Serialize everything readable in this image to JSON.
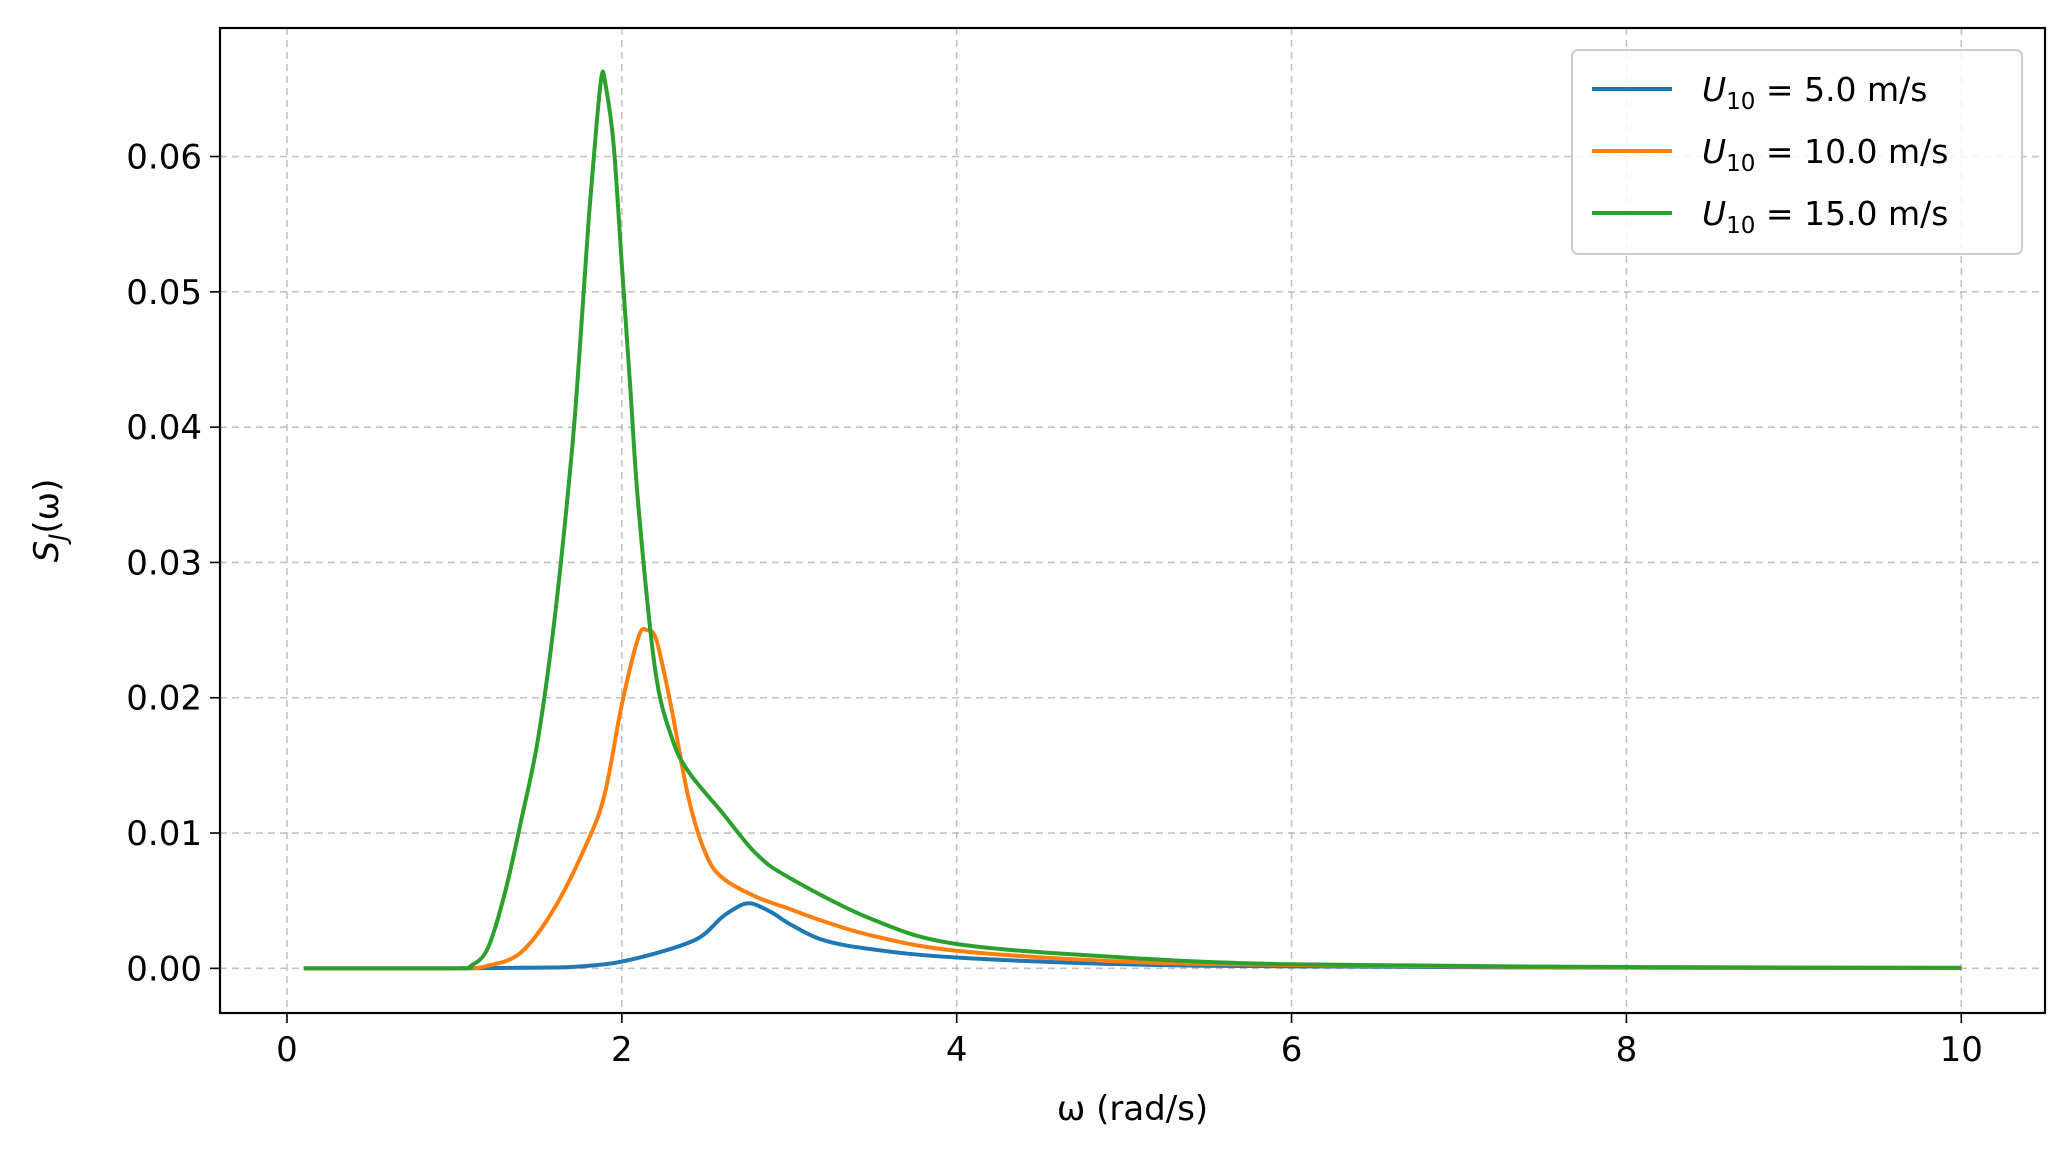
{
  "chart_data": {
    "type": "line",
    "xlabel": "ω (rad/s)",
    "ylabel": "S_J(ω)",
    "xlim": [
      -0.4,
      10.5
    ],
    "ylim": [
      -0.0033,
      0.0695
    ],
    "xticks": [
      0,
      2,
      4,
      6,
      8,
      10
    ],
    "xtick_labels": [
      "0",
      "2",
      "4",
      "6",
      "8",
      "10"
    ],
    "yticks": [
      0.0,
      0.01,
      0.02,
      0.03,
      0.04,
      0.05,
      0.06
    ],
    "ytick_labels": [
      "0.00",
      "0.01",
      "0.02",
      "0.03",
      "0.04",
      "0.05",
      "0.06"
    ],
    "grid": true,
    "legend_position": "top-right",
    "series": [
      {
        "name": "U10 = 5.0 m/s",
        "legend_main": "U",
        "legend_sub": "10",
        "legend_value": " = 5.0 m/s",
        "color": "#1f77b4",
        "x": [
          0.1,
          1.0,
          1.5,
          1.7,
          1.9,
          2.0,
          2.2,
          2.4,
          2.5,
          2.6,
          2.7,
          2.75,
          2.8,
          2.9,
          3.0,
          3.2,
          3.5,
          4.0,
          5.0,
          6.0,
          8.0,
          10.0
        ],
        "y": [
          0.0,
          0.0,
          5e-05,
          0.0001,
          0.0003,
          0.0005,
          0.0011,
          0.0019,
          0.0026,
          0.0038,
          0.0046,
          0.0048,
          0.0047,
          0.0041,
          0.0033,
          0.0021,
          0.0014,
          0.0008,
          0.0003,
          0.00015,
          5e-05,
          2e-05
        ]
      },
      {
        "name": "U10 = 10.0 m/s",
        "legend_main": "U",
        "legend_sub": "10",
        "legend_value": " = 10.0 m/s",
        "color": "#ff7f0e",
        "x": [
          0.1,
          1.0,
          1.2,
          1.4,
          1.6,
          1.8,
          1.9,
          2.0,
          2.1,
          2.15,
          2.2,
          2.25,
          2.3,
          2.4,
          2.5,
          2.6,
          2.8,
          3.0,
          3.2,
          3.5,
          4.0,
          5.0,
          6.0,
          8.0,
          10.0
        ],
        "y": [
          0.0,
          0.0,
          0.0002,
          0.0012,
          0.0045,
          0.0095,
          0.013,
          0.0195,
          0.0245,
          0.025,
          0.0245,
          0.022,
          0.019,
          0.0125,
          0.0085,
          0.0067,
          0.0053,
          0.0044,
          0.0035,
          0.0024,
          0.0013,
          0.0005,
          0.00025,
          7e-05,
          3e-05
        ]
      },
      {
        "name": "U10 = 15.0 m/s",
        "legend_main": "U",
        "legend_sub": "10",
        "legend_value": " = 15.0 m/s",
        "color": "#2ca02c",
        "x": [
          0.1,
          1.0,
          1.1,
          1.2,
          1.3,
          1.4,
          1.5,
          1.6,
          1.7,
          1.75,
          1.8,
          1.85,
          1.88,
          1.9,
          1.95,
          2.0,
          2.05,
          2.1,
          2.2,
          2.3,
          2.4,
          2.6,
          2.8,
          3.0,
          3.5,
          4.0,
          5.0,
          6.0,
          8.0,
          10.0
        ],
        "y": [
          0.0,
          0.0,
          0.0002,
          0.0015,
          0.0055,
          0.011,
          0.017,
          0.026,
          0.038,
          0.046,
          0.055,
          0.0625,
          0.066,
          0.0655,
          0.061,
          0.052,
          0.043,
          0.034,
          0.022,
          0.017,
          0.0145,
          0.0115,
          0.0085,
          0.0067,
          0.0036,
          0.0018,
          0.0008,
          0.0003,
          0.0001,
          4e-05
        ]
      }
    ]
  }
}
